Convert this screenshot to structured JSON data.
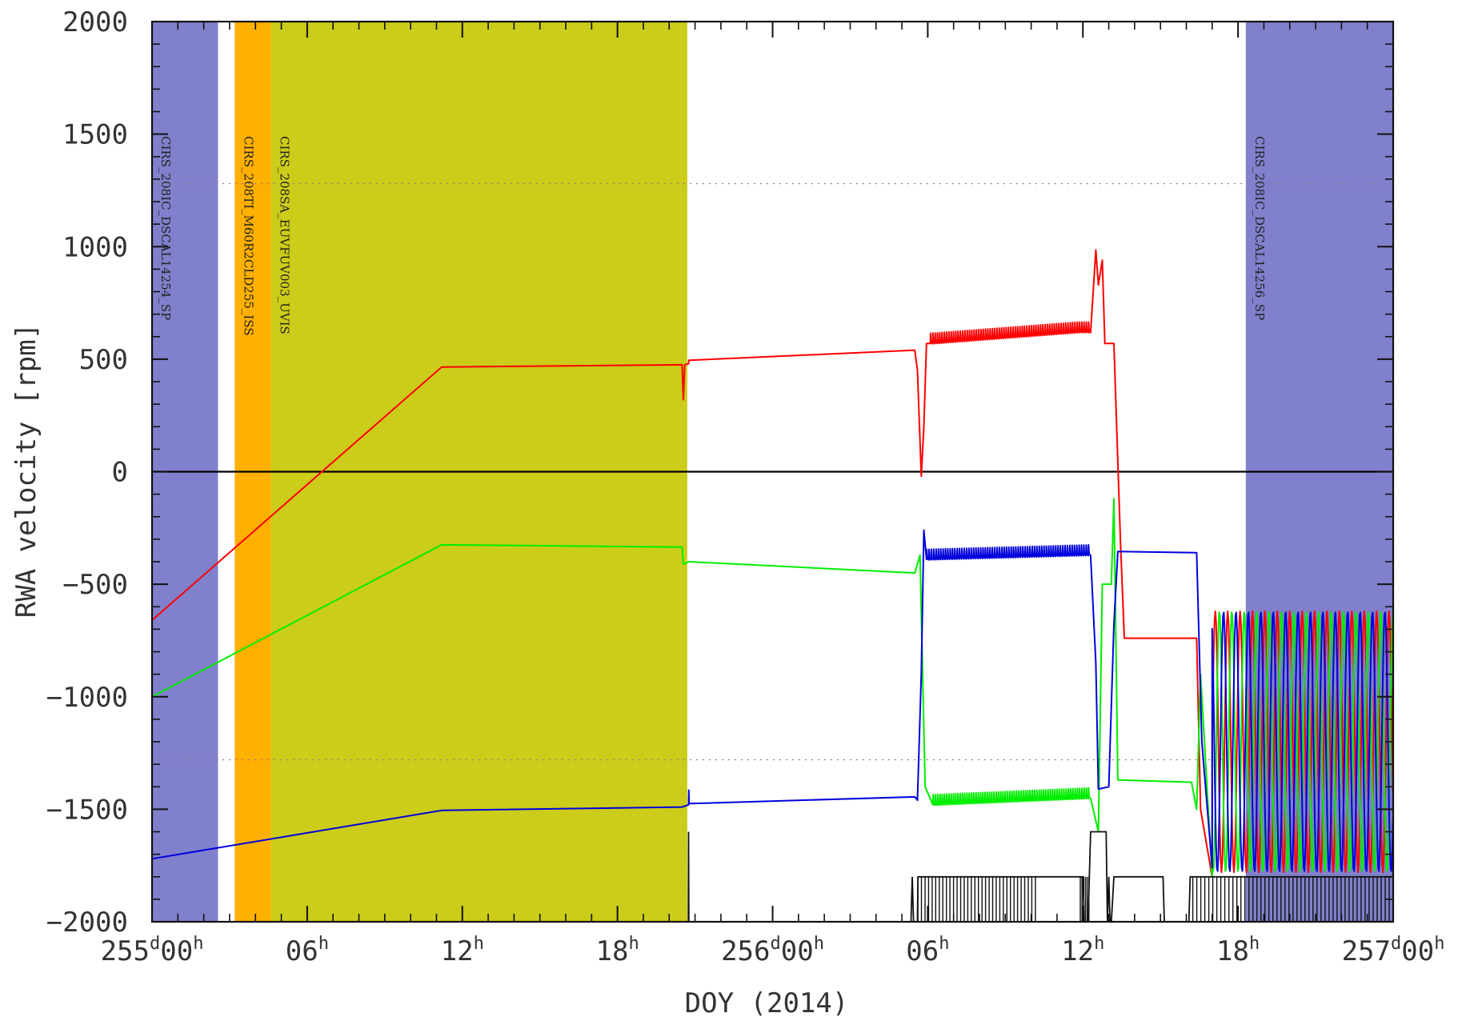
{
  "chart_data": {
    "type": "line",
    "xlabel": "DOY (2014)",
    "ylabel": "RWA velocity [rpm]",
    "xlim_hours": [
      0,
      48
    ],
    "ylim": [
      -2000,
      2000
    ],
    "y_ticks": [
      2000,
      1500,
      1000,
      500,
      0,
      -500,
      -1000,
      -1500,
      -2000
    ],
    "x_ticks": [
      {
        "h": 0,
        "day": "255",
        "hour": "00"
      },
      {
        "h": 6,
        "hour": "06"
      },
      {
        "h": 12,
        "hour": "12"
      },
      {
        "h": 18,
        "hour": "18"
      },
      {
        "h": 24,
        "day": "256",
        "hour": "00"
      },
      {
        "h": 30,
        "hour": "06"
      },
      {
        "h": 36,
        "hour": "12"
      },
      {
        "h": 42,
        "hour": "18"
      },
      {
        "h": 48,
        "day": "257",
        "hour": "00"
      }
    ],
    "tick_suffix_day": "d",
    "tick_suffix_hour": "h",
    "reference_lines": [
      1280,
      -1280
    ],
    "bands": [
      {
        "start": 0.0,
        "end": 2.55,
        "color": "#8080cc",
        "label": "CIRS_208IC_DSCAL14254_SP"
      },
      {
        "start": 3.2,
        "end": 4.6,
        "color": "#ffb000",
        "label": "CIRS_208TI_M60R2CLD255_ISS"
      },
      {
        "start": 4.6,
        "end": 20.7,
        "color": "#cccc1a",
        "label": "CIRS_208SA_EUVFUV003_UVIS"
      },
      {
        "start": 42.3,
        "end": 48.0,
        "color": "#8080cc",
        "label": "CIRS_208IC_DSCAL14256_SP"
      }
    ],
    "series": [
      {
        "color": "#ff0000",
        "points": [
          [
            0,
            -660
          ],
          [
            11.2,
            465
          ],
          [
            20.5,
            475
          ],
          [
            20.55,
            320
          ],
          [
            20.6,
            475
          ],
          [
            20.75,
            480
          ],
          [
            20.76,
            495
          ],
          [
            29.5,
            540
          ],
          [
            29.6,
            450
          ],
          [
            29.75,
            -20
          ],
          [
            29.85,
            200
          ],
          [
            29.95,
            570
          ],
          [
            30.1,
            580
          ],
          [
            35.8,
            630
          ],
          [
            36.3,
            630
          ],
          [
            36.5,
            985
          ],
          [
            36.6,
            830
          ],
          [
            36.75,
            940
          ],
          [
            36.85,
            570
          ],
          [
            37.2,
            570
          ],
          [
            37.45,
            -300
          ],
          [
            37.6,
            -740
          ],
          [
            40.4,
            -740
          ],
          [
            40.55,
            -1500
          ],
          [
            41.0,
            -1800
          ]
        ],
        "sawtooth": {
          "start": 30.1,
          "end": 36.3,
          "count": 70,
          "amp": 35
        },
        "osc": {
          "start": 41.0,
          "end": 48.0,
          "mid": -1200,
          "amp": 580,
          "period": 0.48,
          "phase": 0.0
        }
      },
      {
        "color": "#00ee00",
        "points": [
          [
            0,
            -1000
          ],
          [
            11.2,
            -325
          ],
          [
            20.5,
            -335
          ],
          [
            20.55,
            -410
          ],
          [
            20.6,
            -410
          ],
          [
            20.75,
            -400
          ],
          [
            29.5,
            -450
          ],
          [
            29.7,
            -370
          ],
          [
            29.9,
            -1400
          ],
          [
            30.2,
            -1470
          ],
          [
            36.3,
            -1440
          ],
          [
            36.6,
            -1600
          ],
          [
            36.75,
            -500
          ],
          [
            37.1,
            -500
          ],
          [
            37.2,
            -120
          ],
          [
            37.35,
            -1370
          ],
          [
            40.2,
            -1380
          ],
          [
            40.4,
            -1500
          ],
          [
            40.55,
            -900
          ],
          [
            41.0,
            -1800
          ]
        ],
        "sawtooth": {
          "start": 30.2,
          "end": 36.3,
          "count": 70,
          "amp": 35
        },
        "osc": {
          "start": 41.0,
          "end": 48.0,
          "mid": -1200,
          "amp": 580,
          "period": 0.48,
          "phase": 0.16
        }
      },
      {
        "color": "#0000dd",
        "points": [
          [
            0,
            -1720
          ],
          [
            11.2,
            -1505
          ],
          [
            20.5,
            -1490
          ],
          [
            20.75,
            -1480
          ],
          [
            20.76,
            -1415
          ],
          [
            20.77,
            -1475
          ],
          [
            29.5,
            -1445
          ],
          [
            29.6,
            -1460
          ],
          [
            29.75,
            -900
          ],
          [
            29.85,
            -260
          ],
          [
            29.95,
            -380
          ],
          [
            36.3,
            -360
          ],
          [
            36.5,
            -850
          ],
          [
            36.6,
            -1410
          ],
          [
            37.0,
            -1400
          ],
          [
            37.2,
            -680
          ],
          [
            37.35,
            -355
          ],
          [
            40.4,
            -360
          ],
          [
            40.6,
            -1200
          ],
          [
            41.0,
            -1760
          ]
        ],
        "sawtooth": {
          "start": 29.95,
          "end": 36.3,
          "count": 70,
          "amp": 35
        },
        "osc": {
          "start": 41.0,
          "end": 48.0,
          "mid": -1200,
          "amp": 580,
          "period": 0.48,
          "phase": 0.32
        }
      }
    ],
    "black_trace": {
      "color": "#111111",
      "points": [
        [
          0,
          -2000
        ],
        [
          20.74,
          -2000
        ],
        [
          20.75,
          -1600
        ],
        [
          20.76,
          -2000
        ],
        [
          29.35,
          -2000
        ],
        [
          29.4,
          -1800
        ],
        [
          29.45,
          -2000
        ],
        [
          29.6,
          -2000
        ],
        [
          29.62,
          -1800
        ],
        [
          35.9,
          -1800
        ],
        [
          36.0,
          -1800
        ],
        [
          36.05,
          -2000
        ],
        [
          36.2,
          -2000
        ],
        [
          36.3,
          -1600
        ],
        [
          36.9,
          -1600
        ],
        [
          36.95,
          -2000
        ],
        [
          37.0,
          -1800
        ],
        [
          37.05,
          -2000
        ],
        [
          37.1,
          -2000
        ],
        [
          37.2,
          -1800
        ],
        [
          39.1,
          -1800
        ],
        [
          39.15,
          -2000
        ],
        [
          40.1,
          -2000
        ],
        [
          40.15,
          -1800
        ],
        [
          48,
          -1800
        ]
      ],
      "spikes": [
        {
          "start": 29.62,
          "end": 34.3,
          "count": 34,
          "low": -2000,
          "high": -1800
        },
        {
          "start": 35.9,
          "end": 36.3,
          "count": 6,
          "low": -2000,
          "high": -1800
        },
        {
          "start": 40.25,
          "end": 48.0,
          "count": 50,
          "low": -2000,
          "high": -1800
        }
      ]
    }
  }
}
